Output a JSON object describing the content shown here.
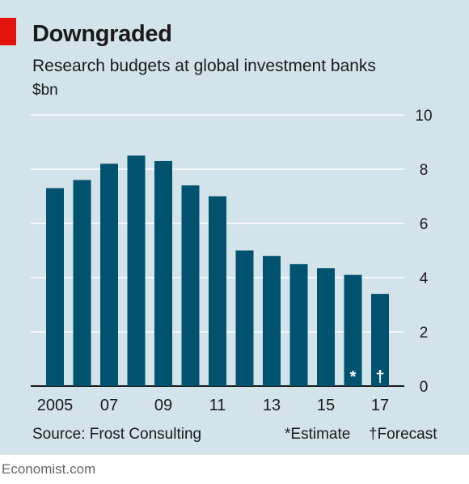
{
  "header": {
    "title": "Downgraded",
    "subtitle": "Research budgets at global investment banks",
    "unit": "$bn"
  },
  "footer": {
    "source": "Source: Frost Consulting",
    "estimate_note": "*Estimate",
    "forecast_note": "†Forecast",
    "brand": "Economist.com"
  },
  "colors": {
    "background": "#d2e3ea",
    "bar": "#00526e",
    "accent": "#e3120b",
    "gridline": "#ffffff"
  },
  "chart_data": {
    "type": "bar",
    "title": "Downgraded",
    "subtitle": "Research budgets at global investment banks",
    "ylabel": "$bn",
    "xlabel": "",
    "categories": [
      "2005",
      "2006",
      "2007",
      "2008",
      "2009",
      "2010",
      "2011",
      "2012",
      "2013",
      "2014",
      "2015",
      "2016",
      "2017"
    ],
    "values": [
      7.3,
      7.6,
      8.2,
      8.5,
      8.3,
      7.4,
      7.0,
      5.0,
      4.8,
      4.5,
      4.35,
      4.1,
      3.4
    ],
    "bar_markers": [
      "",
      "",
      "",
      "",
      "",
      "",
      "",
      "",
      "",
      "",
      "",
      "*",
      "†"
    ],
    "x_tick_labels": [
      "2005",
      "",
      "07",
      "",
      "09",
      "",
      "11",
      "",
      "13",
      "",
      "15",
      "",
      "17"
    ],
    "y_ticks": [
      0,
      2,
      4,
      6,
      8,
      10
    ],
    "ylim": [
      0,
      10
    ],
    "grid": true,
    "y_axis_side": "right"
  }
}
